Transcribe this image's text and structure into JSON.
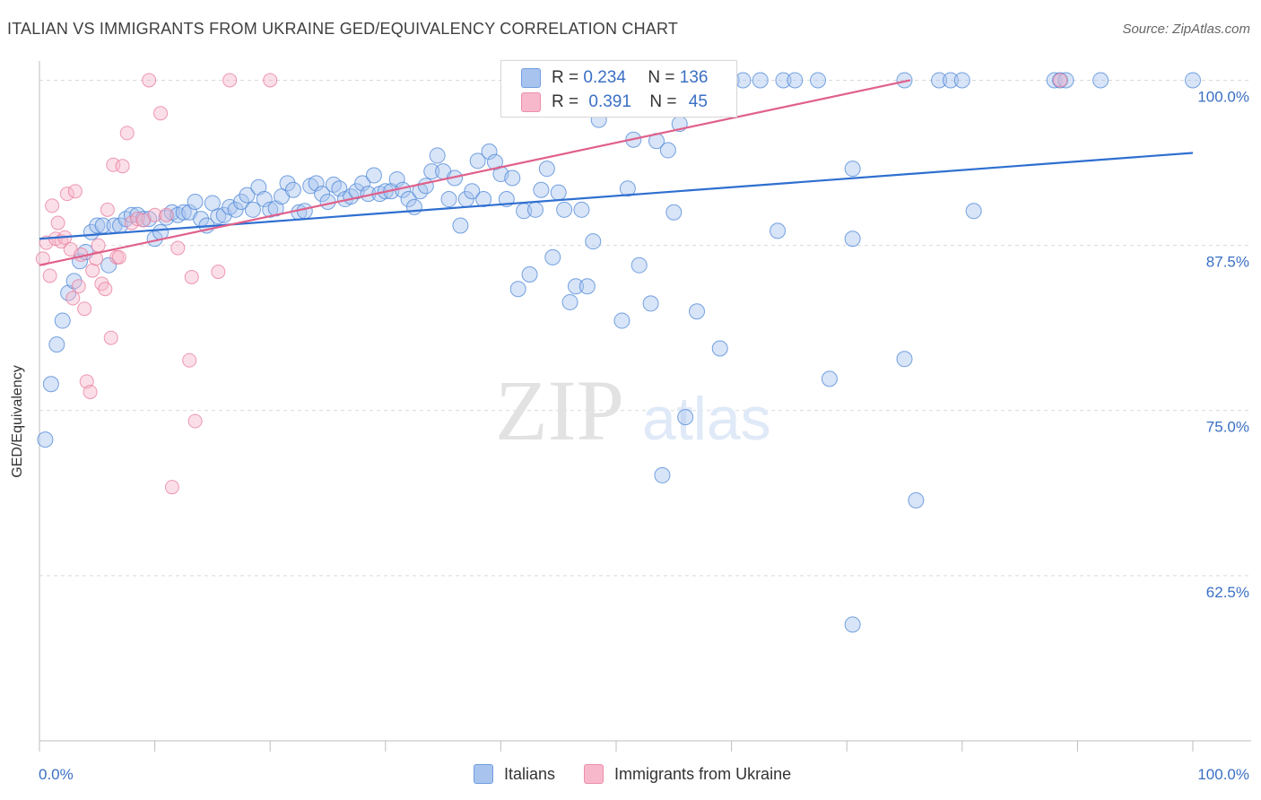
{
  "title": "ITALIAN VS IMMIGRANTS FROM UKRAINE GED/EQUIVALENCY CORRELATION CHART",
  "source": "Source: ZipAtlas.com",
  "watermark": {
    "zip": "ZIP",
    "atlas": "atlas"
  },
  "legend": {
    "rows": [
      {
        "r_label": "R = ",
        "r_value": "0.234",
        "n_label": "N = ",
        "n_value": "136",
        "color": "#a8c4ee"
      },
      {
        "r_label": "R = ",
        "r_value": "0.391",
        "n_label": "N = ",
        "n_value": "45",
        "color": "#f7b8cb"
      }
    ]
  },
  "bottom_legend": [
    {
      "label": "Italians",
      "color": "#a8c4ee"
    },
    {
      "label": "Immigrants from Ukraine",
      "color": "#f7b8cb"
    }
  ],
  "chart_data": {
    "type": "scatter",
    "ylabel": "GED/Equivalency",
    "xlim": [
      0,
      100
    ],
    "ylim": [
      50,
      102
    ],
    "x_tick_labels": [
      "0.0%",
      "100.0%"
    ],
    "y_ticks": [
      {
        "value": 100,
        "label": "100.0%"
      },
      {
        "value": 87.5,
        "label": "87.5%"
      },
      {
        "value": 75,
        "label": "75.0%"
      },
      {
        "value": 62.5,
        "label": "62.5%"
      }
    ],
    "grid": true,
    "series": [
      {
        "name": "Italians",
        "color": "#4a86d8",
        "fill": "#a8c4ee",
        "trend": {
          "x0": 0,
          "y0": 88.0,
          "x1": 100,
          "y1": 94.5,
          "color": "#2f6fd0"
        },
        "points": [
          [
            0.5,
            72.8
          ],
          [
            1.0,
            77.0
          ],
          [
            1.5,
            80.0
          ],
          [
            2.0,
            81.8
          ],
          [
            2.5,
            83.9
          ],
          [
            3.0,
            84.8
          ],
          [
            3.5,
            86.3
          ],
          [
            4.0,
            87.0
          ],
          [
            4.5,
            88.5
          ],
          [
            5.0,
            89.0
          ],
          [
            5.5,
            89.0
          ],
          [
            6.0,
            86.0
          ],
          [
            6.5,
            89.0
          ],
          [
            7.0,
            89.0
          ],
          [
            7.5,
            89.5
          ],
          [
            8.0,
            89.8
          ],
          [
            8.5,
            89.8
          ],
          [
            9.0,
            89.5
          ],
          [
            9.5,
            89.5
          ],
          [
            10.0,
            88.0
          ],
          [
            10.5,
            88.5
          ],
          [
            11.0,
            89.6
          ],
          [
            11.5,
            90.0
          ],
          [
            12.0,
            89.8
          ],
          [
            12.5,
            90.0
          ],
          [
            13.0,
            90.0
          ],
          [
            13.5,
            90.8
          ],
          [
            14.0,
            89.5
          ],
          [
            14.5,
            89.0
          ],
          [
            15.0,
            90.7
          ],
          [
            15.5,
            89.7
          ],
          [
            16.0,
            89.8
          ],
          [
            16.5,
            90.4
          ],
          [
            17.0,
            90.2
          ],
          [
            17.5,
            90.8
          ],
          [
            18.0,
            91.3
          ],
          [
            18.5,
            90.2
          ],
          [
            19.0,
            91.9
          ],
          [
            19.5,
            91.0
          ],
          [
            20.0,
            90.2
          ],
          [
            20.5,
            90.3
          ],
          [
            21.0,
            91.2
          ],
          [
            21.5,
            92.2
          ],
          [
            22.0,
            91.7
          ],
          [
            22.5,
            90.0
          ],
          [
            23.0,
            90.1
          ],
          [
            23.5,
            92.0
          ],
          [
            24.0,
            92.2
          ],
          [
            24.5,
            91.4
          ],
          [
            25.0,
            90.8
          ],
          [
            25.5,
            92.1
          ],
          [
            26.0,
            91.8
          ],
          [
            26.5,
            91.0
          ],
          [
            27.0,
            91.2
          ],
          [
            27.5,
            91.6
          ],
          [
            28.0,
            92.2
          ],
          [
            28.5,
            91.4
          ],
          [
            29.0,
            92.8
          ],
          [
            29.5,
            91.4
          ],
          [
            30.0,
            91.6
          ],
          [
            30.5,
            91.6
          ],
          [
            31.0,
            92.5
          ],
          [
            31.5,
            91.7
          ],
          [
            32.0,
            91.0
          ],
          [
            32.5,
            90.4
          ],
          [
            33.0,
            91.6
          ],
          [
            33.5,
            92.0
          ],
          [
            34.0,
            93.1
          ],
          [
            34.5,
            94.3
          ],
          [
            35.0,
            93.1
          ],
          [
            35.5,
            91.0
          ],
          [
            36.0,
            92.6
          ],
          [
            36.5,
            89.0
          ],
          [
            37.0,
            91.0
          ],
          [
            37.5,
            91.6
          ],
          [
            38.0,
            93.9
          ],
          [
            38.5,
            91.0
          ],
          [
            39.0,
            94.6
          ],
          [
            39.5,
            93.8
          ],
          [
            40.0,
            92.9
          ],
          [
            40.5,
            91.0
          ],
          [
            41.0,
            92.6
          ],
          [
            41.5,
            84.2
          ],
          [
            42.0,
            90.1
          ],
          [
            42.5,
            85.3
          ],
          [
            43.0,
            90.2
          ],
          [
            43.5,
            91.7
          ],
          [
            44.0,
            93.3
          ],
          [
            44.5,
            86.6
          ],
          [
            45.0,
            91.5
          ],
          [
            45.5,
            90.2
          ],
          [
            46.0,
            83.2
          ],
          [
            46.5,
            84.4
          ],
          [
            47.0,
            90.2
          ],
          [
            47.5,
            84.4
          ],
          [
            48.0,
            87.8
          ],
          [
            48.5,
            97.0
          ],
          [
            49.0,
            100.0
          ],
          [
            49.5,
            100.0
          ],
          [
            50.0,
            100.0
          ],
          [
            50.5,
            81.8
          ],
          [
            51.0,
            91.8
          ],
          [
            51.5,
            95.5
          ],
          [
            52.0,
            86.0
          ],
          [
            52.5,
            100.0
          ],
          [
            53.0,
            83.1
          ],
          [
            53.5,
            95.4
          ],
          [
            54.0,
            70.1
          ],
          [
            54.5,
            94.7
          ],
          [
            55.0,
            90.0
          ],
          [
            55.5,
            96.7
          ],
          [
            56.0,
            74.5
          ],
          [
            56.5,
            98.0
          ],
          [
            57.0,
            82.5
          ],
          [
            57.5,
            100.0
          ],
          [
            58.0,
            100.0
          ],
          [
            59.0,
            79.7
          ],
          [
            60.0,
            100.0
          ],
          [
            61.0,
            100.0
          ],
          [
            62.5,
            100.0
          ],
          [
            64.0,
            88.6
          ],
          [
            64.5,
            100.0
          ],
          [
            65.5,
            100.0
          ],
          [
            67.5,
            100.0
          ],
          [
            68.5,
            77.4
          ],
          [
            70.5,
            88.0
          ],
          [
            70.5,
            58.8
          ],
          [
            70.5,
            93.3
          ],
          [
            75.0,
            100.0
          ],
          [
            75.0,
            78.9
          ],
          [
            76.0,
            68.2
          ],
          [
            78.0,
            100.0
          ],
          [
            79.0,
            100.0
          ],
          [
            80.0,
            100.0
          ],
          [
            81.0,
            90.1
          ],
          [
            88.0,
            100.0
          ],
          [
            88.5,
            100.0
          ],
          [
            89.0,
            100.0
          ],
          [
            92.0,
            100.0
          ],
          [
            100.0,
            100.0
          ]
        ]
      },
      {
        "name": "Immigrants from Ukraine",
        "color": "#e8799a",
        "fill": "#f7b8cb",
        "trend": {
          "x0": 0,
          "y0": 86.0,
          "x1": 75.5,
          "y1": 100.0,
          "color": "#e0608a"
        },
        "points": [
          [
            0.3,
            86.5
          ],
          [
            0.6,
            87.7
          ],
          [
            0.9,
            85.2
          ],
          [
            1.1,
            90.5
          ],
          [
            1.4,
            88.0
          ],
          [
            1.6,
            89.2
          ],
          [
            1.9,
            87.8
          ],
          [
            2.2,
            88.1
          ],
          [
            2.4,
            91.4
          ],
          [
            2.7,
            87.2
          ],
          [
            2.9,
            83.5
          ],
          [
            3.1,
            91.6
          ],
          [
            3.4,
            84.4
          ],
          [
            3.6,
            86.8
          ],
          [
            3.9,
            82.7
          ],
          [
            4.1,
            77.2
          ],
          [
            4.4,
            76.4
          ],
          [
            4.6,
            85.6
          ],
          [
            4.9,
            86.5
          ],
          [
            5.1,
            87.5
          ],
          [
            5.4,
            84.6
          ],
          [
            5.7,
            84.2
          ],
          [
            5.9,
            90.2
          ],
          [
            6.2,
            80.5
          ],
          [
            6.4,
            93.6
          ],
          [
            6.7,
            86.6
          ],
          [
            6.9,
            86.6
          ],
          [
            7.2,
            93.5
          ],
          [
            7.6,
            96.0
          ],
          [
            8.0,
            89.2
          ],
          [
            8.5,
            89.5
          ],
          [
            9.0,
            89.4
          ],
          [
            9.5,
            100.0
          ],
          [
            10.0,
            89.8
          ],
          [
            10.5,
            97.5
          ],
          [
            11.0,
            89.8
          ],
          [
            11.5,
            69.2
          ],
          [
            12.0,
            87.3
          ],
          [
            13.0,
            78.8
          ],
          [
            13.2,
            85.1
          ],
          [
            13.5,
            74.2
          ],
          [
            15.5,
            85.5
          ],
          [
            16.5,
            100.0
          ],
          [
            20.0,
            100.0
          ],
          [
            88.5,
            100.0
          ]
        ]
      }
    ]
  }
}
